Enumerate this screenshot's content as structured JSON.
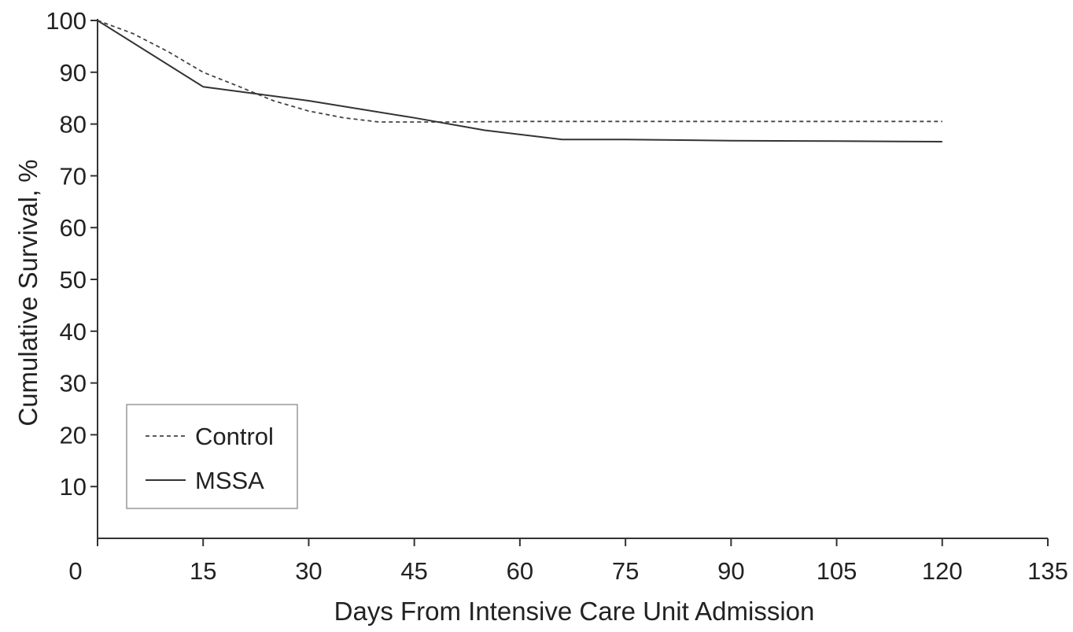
{
  "chart_data": {
    "type": "line",
    "xlabel": "Days From Intensive Care Unit Admission",
    "ylabel": "Cumulative Survival, %",
    "xlim": [
      0,
      135
    ],
    "ylim": [
      0,
      100
    ],
    "x_ticks": [
      0,
      15,
      30,
      45,
      60,
      75,
      90,
      105,
      120,
      135
    ],
    "y_ticks": [
      10,
      20,
      30,
      40,
      50,
      60,
      70,
      80,
      90,
      100
    ],
    "legend_position": "bottom-left",
    "grid": false,
    "series": [
      {
        "name": "Control",
        "line_style": "dashed",
        "color": "#444444",
        "points": [
          [
            0,
            100
          ],
          [
            5,
            97.5
          ],
          [
            10,
            94
          ],
          [
            15,
            90
          ],
          [
            20,
            87.3
          ],
          [
            25,
            84.5
          ],
          [
            30,
            82.5
          ],
          [
            35,
            81.2
          ],
          [
            40,
            80.4
          ],
          [
            45,
            80.4
          ],
          [
            50,
            80.4
          ],
          [
            60,
            80.5
          ],
          [
            75,
            80.5
          ],
          [
            90,
            80.5
          ],
          [
            105,
            80.5
          ],
          [
            120,
            80.5
          ]
        ]
      },
      {
        "name": "MSSA",
        "line_style": "solid",
        "color": "#333333",
        "points": [
          [
            0,
            100
          ],
          [
            15,
            87.2
          ],
          [
            30,
            84.5
          ],
          [
            45,
            81.2
          ],
          [
            55,
            78.8
          ],
          [
            66,
            77
          ],
          [
            75,
            77
          ],
          [
            90,
            76.8
          ],
          [
            105,
            76.7
          ],
          [
            120,
            76.6
          ]
        ]
      }
    ]
  }
}
